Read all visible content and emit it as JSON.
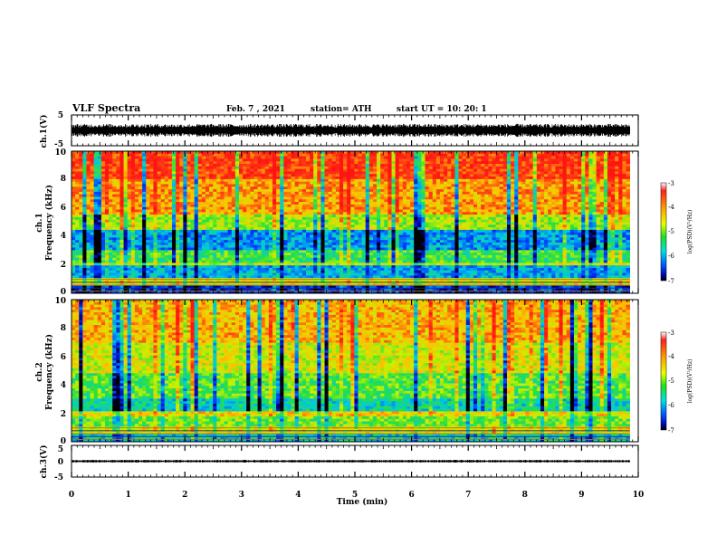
{
  "header": {
    "title": "VLF Spectra",
    "date": "Feb. 7  , 2021",
    "station": "station= ATH",
    "start": "start  UT  =    10: 20: 1"
  },
  "chart_data": [
    {
      "type": "line",
      "panel": "ch.1 waveform",
      "ylabel": "ch.1(V)",
      "ylim": [
        -5,
        5
      ],
      "yticks": [
        "5",
        "-5"
      ],
      "xlim": [
        0,
        10
      ],
      "trace": {
        "color": "#000000",
        "center": 0,
        "amplitude": 1.5,
        "fill_until_min": 9.85
      }
    },
    {
      "type": "heatmap",
      "panel": "ch.1 spectrogram",
      "ylabel": "ch.1\nFrequency  (kHz)",
      "ylim": [
        0,
        10
      ],
      "yticks": [
        "0",
        "2",
        "4",
        "6",
        "8",
        "10"
      ],
      "xlim": [
        0,
        10
      ],
      "data_end_min": 9.85,
      "colorbar": {
        "label": "log(PSD)(V²/Hz)",
        "ticks": [
          "-3",
          "-4",
          "-5",
          "-6",
          "-7"
        ],
        "range": [
          -7,
          -3
        ]
      },
      "bands": [
        {
          "from": 8.0,
          "to": 10.0,
          "level": -3.4
        },
        {
          "from": 5.5,
          "to": 8.0,
          "level": -3.9
        },
        {
          "from": 4.5,
          "to": 5.5,
          "level": -4.6
        },
        {
          "from": 3.0,
          "to": 4.5,
          "level": -5.8
        },
        {
          "from": 2.2,
          "to": 3.0,
          "level": -5.0
        },
        {
          "from": 1.9,
          "to": 2.2,
          "level": -4.4
        },
        {
          "from": 1.0,
          "to": 1.9,
          "level": -5.7
        },
        {
          "from": 0.6,
          "to": 1.0,
          "level": -4.3
        },
        {
          "from": 0.0,
          "to": 0.6,
          "level": -6.3
        }
      ]
    },
    {
      "type": "heatmap",
      "panel": "ch.2 spectrogram",
      "ylabel": "ch.2\nFrequency  (kHz)",
      "ylim": [
        0,
        10
      ],
      "yticks": [
        "0",
        "2",
        "4",
        "6",
        "8",
        "10"
      ],
      "xlim": [
        0,
        10
      ],
      "data_end_min": 9.85,
      "colorbar": {
        "label": "log(PSD)(V²/Hz)",
        "ticks": [
          "-3",
          "-4",
          "-5",
          "-6",
          "-7"
        ],
        "range": [
          -7,
          -3
        ]
      },
      "bands": [
        {
          "from": 7.0,
          "to": 10.0,
          "level": -4.0
        },
        {
          "from": 4.8,
          "to": 7.0,
          "level": -4.4
        },
        {
          "from": 3.0,
          "to": 4.8,
          "level": -4.9
        },
        {
          "from": 2.2,
          "to": 3.0,
          "level": -5.4
        },
        {
          "from": 1.7,
          "to": 2.2,
          "level": -4.2
        },
        {
          "from": 1.0,
          "to": 1.7,
          "level": -4.8
        },
        {
          "from": 0.5,
          "to": 1.0,
          "level": -4.3
        },
        {
          "from": 0.0,
          "to": 0.5,
          "level": -5.5
        }
      ]
    },
    {
      "type": "line",
      "panel": "ch.3 waveform",
      "ylabel": "ch.3(V)",
      "ylim": [
        -5,
        5
      ],
      "yticks": [
        "5",
        "0",
        "-5"
      ],
      "xlim": [
        0,
        10
      ],
      "xlabel": "Time  (min)",
      "xticks": [
        "0",
        "1",
        "2",
        "3",
        "4",
        "5",
        "6",
        "7",
        "8",
        "9",
        "10"
      ],
      "trace": {
        "color": "#000000",
        "center": 0,
        "amplitude": 0.3,
        "fill_until_min": 9.85
      }
    }
  ]
}
